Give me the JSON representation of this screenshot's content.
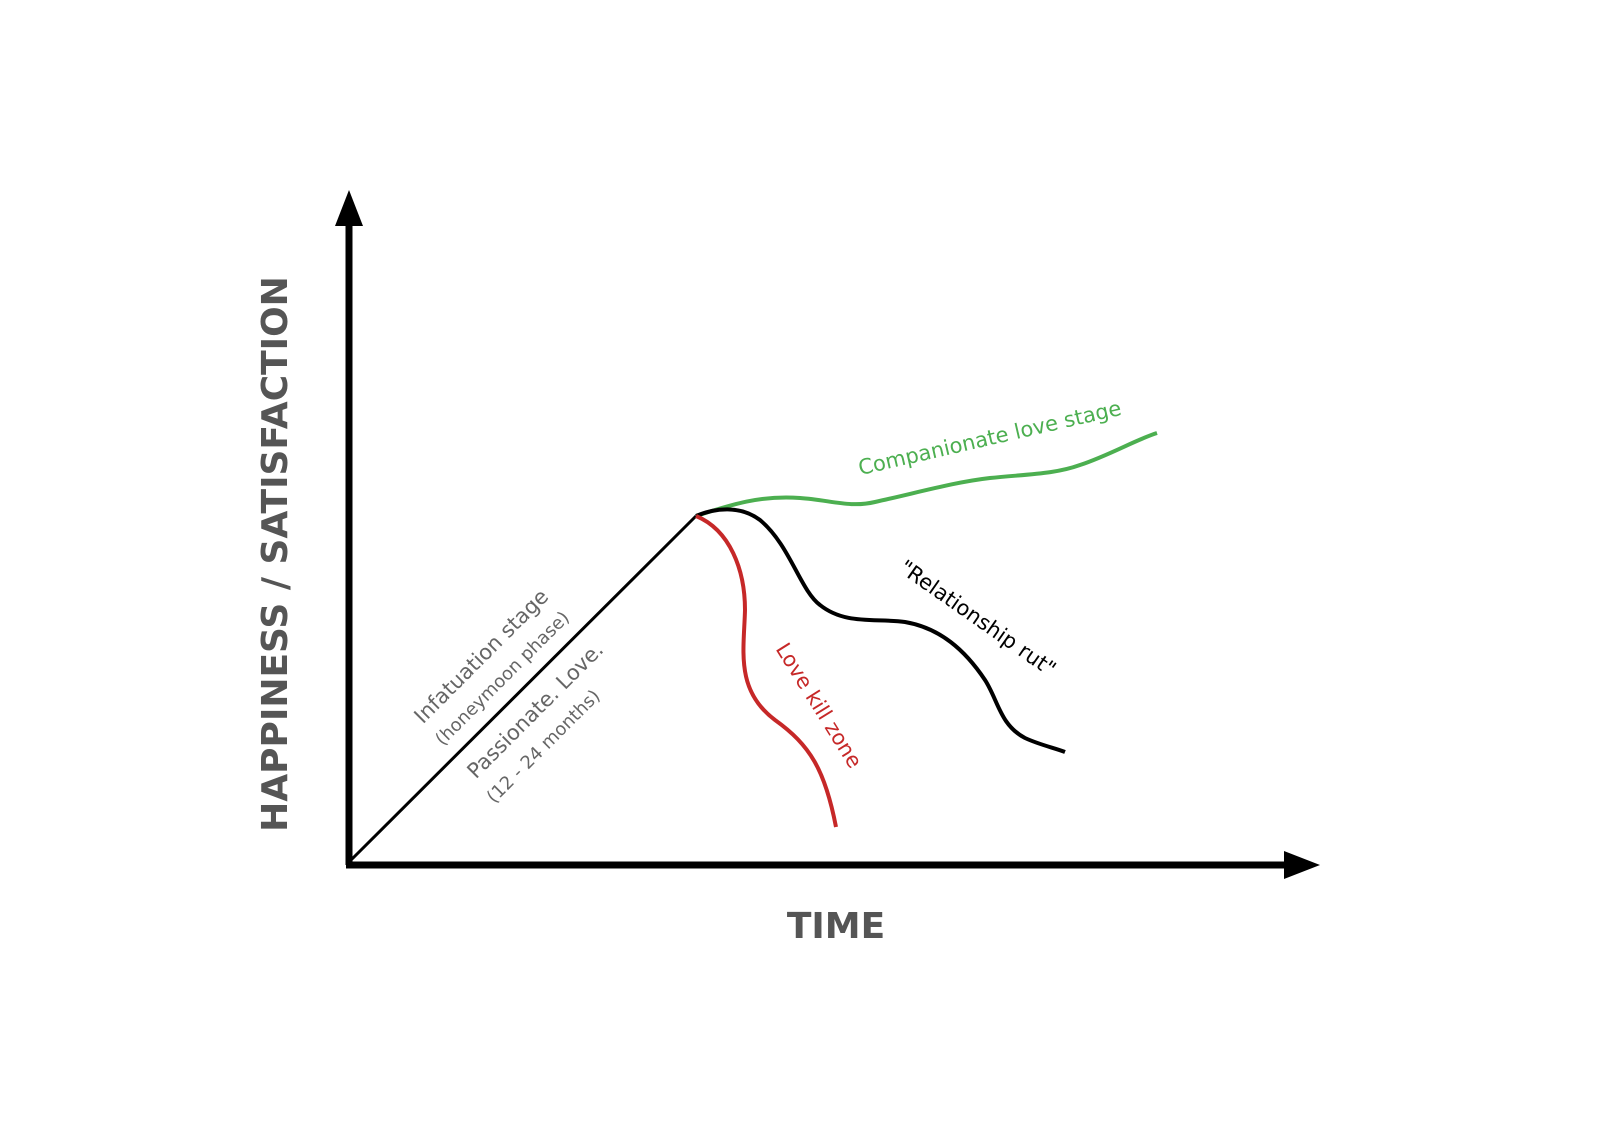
{
  "axes": {
    "y_label": "HAPPINESS / SATISFACTION",
    "x_label": "TIME"
  },
  "annotations": {
    "infatuation": "Infatuation stage",
    "honeymoon": "(honeymoon phase)",
    "passionate": "Passionate. Love.",
    "duration": "(12 - 24 months)",
    "companionate": "Companionate love stage",
    "rut": "\"Relationship rut\"",
    "kill_zone": "Love kill zone"
  }
}
